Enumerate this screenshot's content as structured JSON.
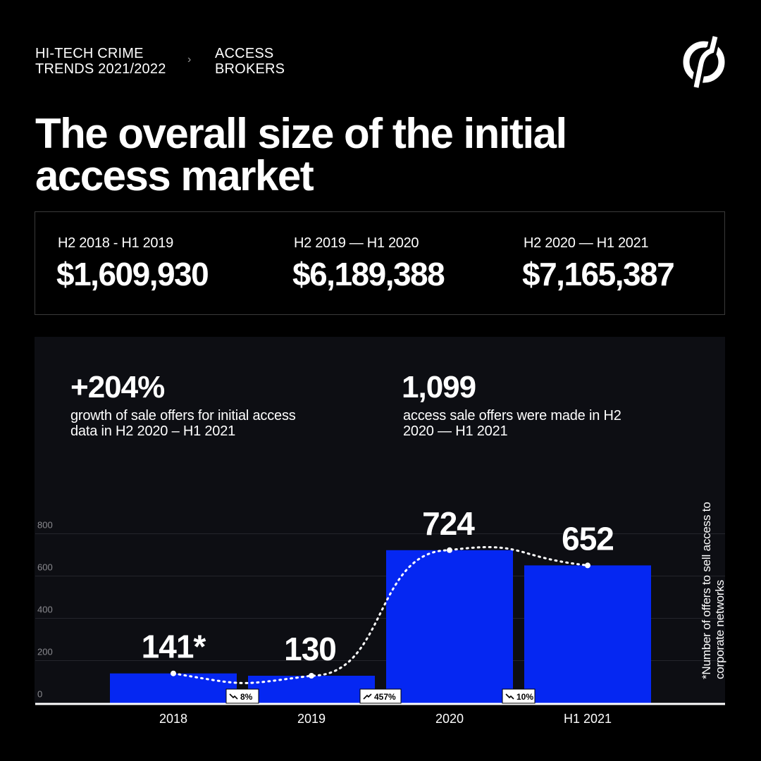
{
  "header": {
    "breadcrumb_1": "HI-TECH CRIME TRENDS 2021/2022",
    "breadcrumb_separator": "›",
    "breadcrumb_2": "ACCESS BROKERS",
    "logo_icon": "brand-logo-icon"
  },
  "title": "The overall size of the initial access market",
  "stats": [
    {
      "period": "H2 2018 - H1 2019",
      "value": "$1,609,930"
    },
    {
      "period": "H2 2019 — H1 2020",
      "value": "$6,189,388"
    },
    {
      "period": "H2 2020 — H1 2021",
      "value": "$7,165,387"
    }
  ],
  "kpis": [
    {
      "value": "+204%",
      "desc": "growth of sale offers for initial access data in H2 2020 – H1 2021"
    },
    {
      "value": "1,099",
      "desc": "access sale offers were made in H2 2020 — H1 2021"
    }
  ],
  "footnote": "*Number of offers to sell access to corporate networks",
  "colors": {
    "bar": "#0527f2",
    "panel": "#0d0e13",
    "background": "#000000",
    "text": "#ffffff"
  },
  "chart_data": {
    "type": "bar",
    "categories": [
      "2018",
      "2019",
      "2020",
      "H1 2021"
    ],
    "values": [
      141,
      130,
      724,
      652
    ],
    "data_labels": [
      "141*",
      "130",
      "724",
      "652"
    ],
    "yticks": [
      0,
      200,
      400,
      600,
      800
    ],
    "ylim": [
      0,
      800
    ],
    "grid": true,
    "trend_line": "dotted, smooth, through bar values",
    "changes": [
      {
        "label": "8%",
        "direction": "down"
      },
      {
        "label": "457%",
        "direction": "up"
      },
      {
        "label": "10%",
        "direction": "down"
      }
    ]
  }
}
